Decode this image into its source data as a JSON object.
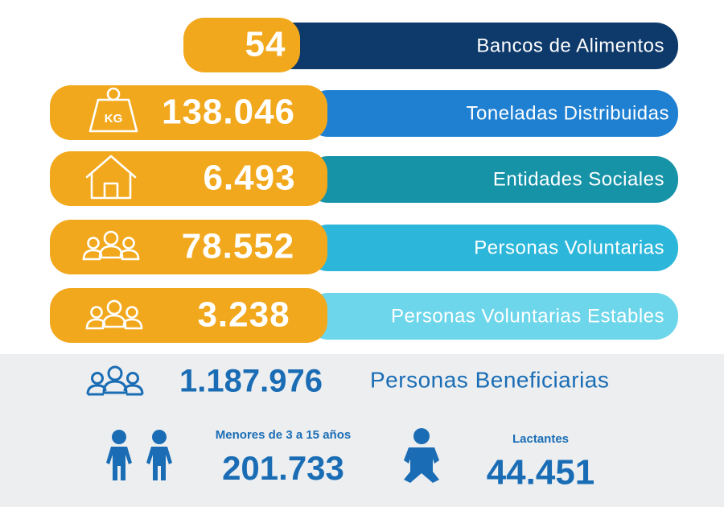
{
  "stats": [
    {
      "value": "54",
      "label": "Bancos de Alimentos"
    },
    {
      "value": "138.046",
      "label": "Toneladas Distribuidas"
    },
    {
      "value": "6.493",
      "label": "Entidades Sociales"
    },
    {
      "value": "78.552",
      "label": "Personas Voluntarias"
    },
    {
      "value": "3.238",
      "label": "Personas Voluntarias Estables"
    }
  ],
  "kg_icon_label": "KG",
  "beneficiaries": {
    "value": "1.187.976",
    "label": "Personas Beneficiarias"
  },
  "breakdown": [
    {
      "label": "Menores de 3 a 15 años",
      "value": "201.733"
    },
    {
      "label": "Lactantes",
      "value": "44.451"
    }
  ]
}
